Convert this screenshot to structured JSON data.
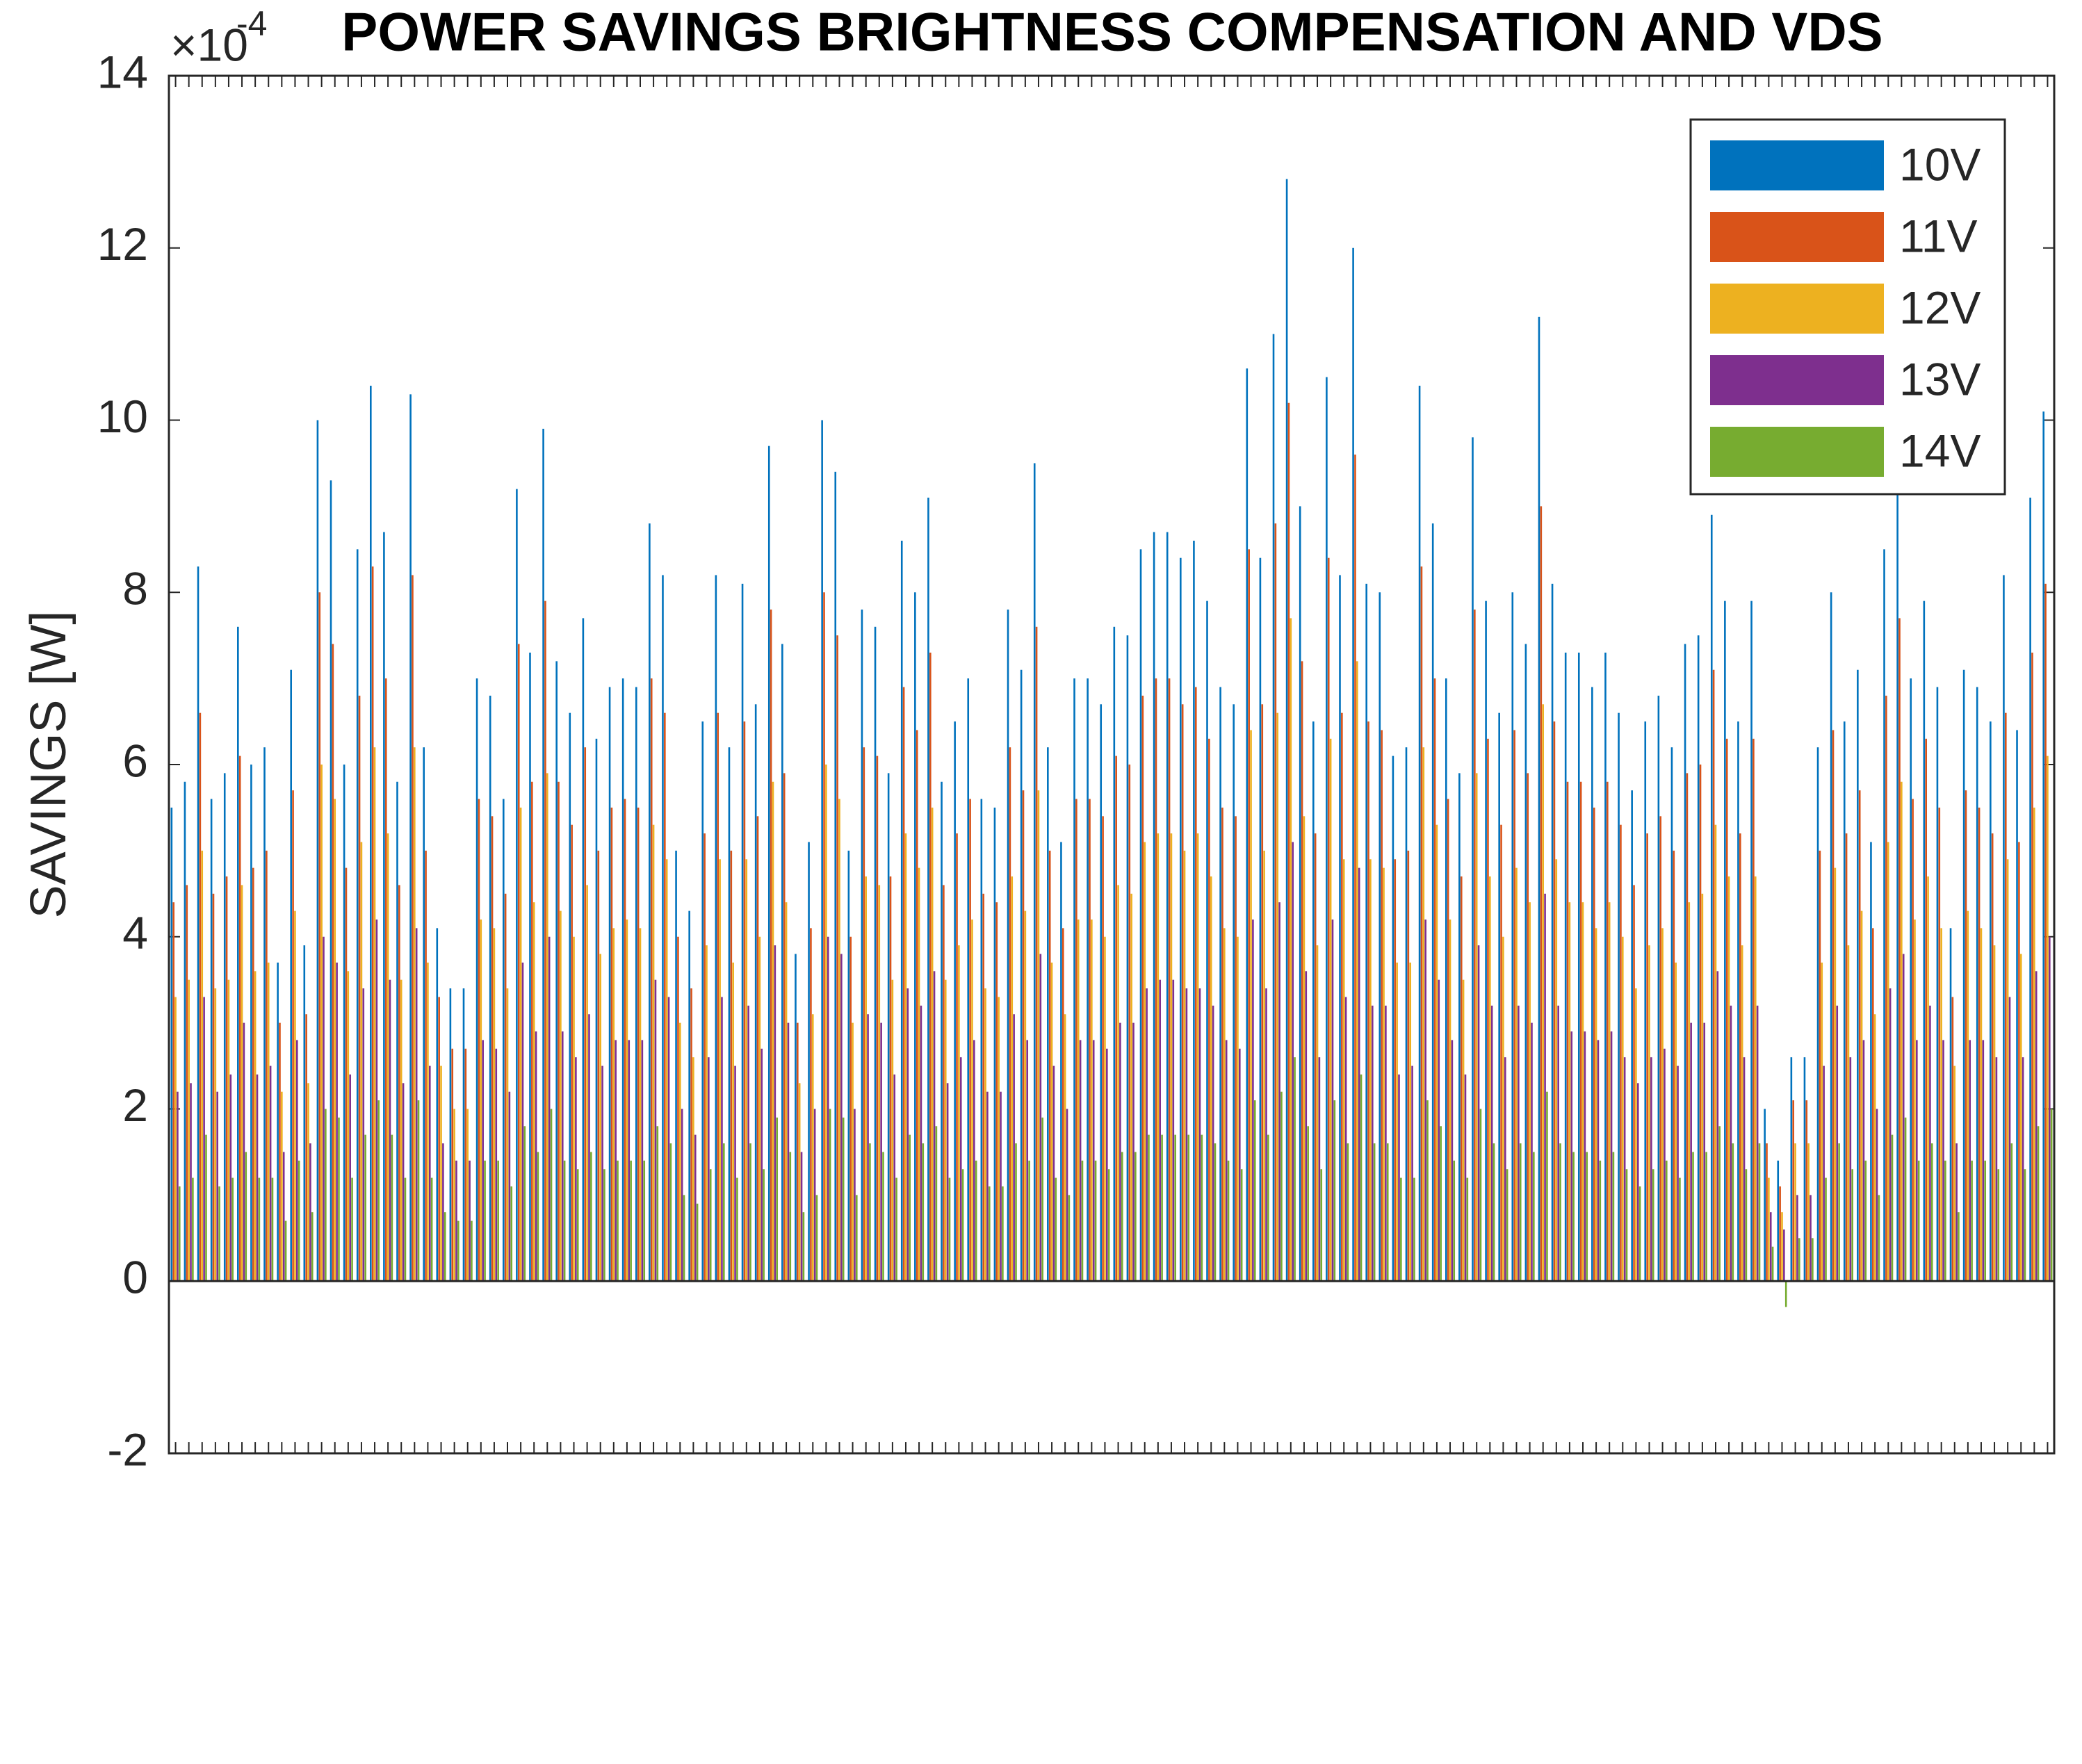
{
  "chart_data": {
    "type": "bar",
    "title": "POWER SAVINGS BRIGHTNESS COMPENSATION AND VDS",
    "ylabel": "SAVINGS  [W]",
    "y_multiplier": {
      "base": "×10",
      "exponent": "-4"
    },
    "ylim": [
      -2,
      14
    ],
    "yticks": [
      -2,
      0,
      2,
      4,
      6,
      8,
      10,
      12,
      14
    ],
    "grid": false,
    "legend": "northeast",
    "categories": [
      null,
      null,
      null,
      null,
      null,
      null,
      null,
      null,
      null,
      null,
      null,
      null,
      null,
      null,
      null,
      null,
      null,
      null,
      null,
      null,
      null,
      null,
      null,
      null,
      null,
      null,
      null,
      null,
      null,
      null,
      null,
      null,
      null,
      null,
      null,
      null,
      null,
      null,
      null,
      null,
      null,
      null,
      null,
      null,
      null,
      null,
      null,
      null,
      null,
      null,
      null,
      null,
      null,
      null,
      null,
      null,
      null,
      null,
      null,
      null,
      null,
      null,
      null,
      null,
      null,
      null,
      null,
      null,
      null,
      null,
      null,
      null,
      null,
      null,
      null,
      null,
      null,
      null,
      null,
      null,
      null,
      null,
      null,
      null,
      null,
      null,
      null,
      null,
      null,
      null,
      null,
      null,
      null,
      null,
      null,
      null,
      null,
      null,
      null,
      null,
      null,
      null,
      null,
      null,
      null,
      null,
      null,
      null,
      null,
      null,
      null,
      null,
      null,
      null,
      null,
      null,
      null,
      null,
      null,
      null,
      null,
      null,
      null,
      null,
      null,
      null,
      null,
      null,
      null,
      null,
      null,
      null,
      null,
      null,
      null,
      null,
      null,
      null,
      null,
      null,
      null,
      null
    ],
    "series": [
      {
        "name": "10V",
        "color": "#0072bd",
        "values": [
          5.5,
          5.8,
          8.3,
          5.6,
          5.9,
          7.6,
          6.0,
          6.2,
          3.7,
          7.1,
          3.9,
          10.0,
          9.3,
          6.0,
          8.5,
          10.4,
          8.7,
          5.8,
          10.3,
          6.2,
          4.1,
          3.4,
          3.4,
          7.0,
          6.8,
          5.6,
          9.2,
          7.3,
          9.9,
          7.2,
          6.6,
          7.7,
          6.3,
          6.9,
          7.0,
          6.9,
          8.8,
          8.2,
          5.0,
          4.3,
          6.5,
          8.2,
          6.2,
          8.1,
          6.7,
          9.7,
          7.4,
          3.8,
          5.1,
          10.0,
          9.4,
          5.0,
          7.8,
          7.6,
          5.9,
          8.6,
          8.0,
          9.1,
          5.8,
          6.5,
          7.0,
          5.6,
          5.5,
          7.8,
          7.1,
          9.5,
          6.2,
          5.1,
          7.0,
          7.0,
          6.7,
          7.6,
          7.5,
          8.5,
          8.7,
          8.7,
          8.4,
          8.6,
          7.9,
          6.9,
          6.7,
          10.6,
          8.4,
          11.0,
          12.8,
          9.0,
          6.5,
          10.5,
          8.2,
          12.0,
          8.1,
          8.0,
          6.1,
          6.2,
          10.4,
          8.8,
          7.0,
          5.9,
          9.8,
          7.9,
          6.6,
          8.0,
          7.4,
          11.2,
          8.1,
          7.3,
          7.3,
          6.9,
          7.3,
          6.6,
          5.7,
          6.5,
          6.8,
          6.2,
          7.4,
          7.5,
          8.9,
          7.9,
          6.5,
          7.9,
          2.0,
          1.4,
          2.6,
          2.6,
          6.2,
          8.0,
          6.5,
          7.1,
          5.1,
          8.5,
          9.6,
          7.0,
          7.9,
          6.9,
          4.1,
          7.1,
          6.9,
          6.5,
          8.2,
          6.4,
          9.1,
          10.1
        ]
      },
      {
        "name": "11V",
        "color": "#d95319",
        "values": [
          4.4,
          4.6,
          6.6,
          4.5,
          4.7,
          6.1,
          4.8,
          5.0,
          3.0,
          5.7,
          3.1,
          8.0,
          7.4,
          4.8,
          6.8,
          8.3,
          7.0,
          4.6,
          8.2,
          5.0,
          3.3,
          2.7,
          2.7,
          5.6,
          5.4,
          4.5,
          7.4,
          5.8,
          7.9,
          5.8,
          5.3,
          6.2,
          5.0,
          5.5,
          5.6,
          5.5,
          7.0,
          6.6,
          4.0,
          3.4,
          5.2,
          6.6,
          5.0,
          6.5,
          5.4,
          7.8,
          5.9,
          3.0,
          4.1,
          8.0,
          7.5,
          4.0,
          6.2,
          6.1,
          4.7,
          6.9,
          6.4,
          7.3,
          4.6,
          5.2,
          5.6,
          4.5,
          4.4,
          6.2,
          5.7,
          7.6,
          5.0,
          4.1,
          5.6,
          5.6,
          5.4,
          6.1,
          6.0,
          6.8,
          7.0,
          7.0,
          6.7,
          6.9,
          6.3,
          5.5,
          5.4,
          8.5,
          6.7,
          8.8,
          10.2,
          7.2,
          5.2,
          8.4,
          6.6,
          9.6,
          6.5,
          6.4,
          4.9,
          5.0,
          8.3,
          7.0,
          5.6,
          4.7,
          7.8,
          6.3,
          5.3,
          6.4,
          5.9,
          9.0,
          6.5,
          5.8,
          5.8,
          5.5,
          5.8,
          5.3,
          4.6,
          5.2,
          5.4,
          5.0,
          5.9,
          6.0,
          7.1,
          6.3,
          5.2,
          6.3,
          1.6,
          1.1,
          2.1,
          2.1,
          5.0,
          6.4,
          5.2,
          5.7,
          4.1,
          6.8,
          7.7,
          5.6,
          6.3,
          5.5,
          3.3,
          5.7,
          5.5,
          5.2,
          6.6,
          5.1,
          7.3,
          8.1
        ]
      },
      {
        "name": "12V",
        "color": "#edb120",
        "values": [
          3.3,
          3.5,
          5.0,
          3.4,
          3.5,
          4.6,
          3.6,
          3.7,
          2.2,
          4.3,
          2.3,
          6.0,
          5.6,
          3.6,
          5.1,
          6.2,
          5.2,
          3.5,
          6.2,
          3.7,
          2.5,
          2.0,
          2.0,
          4.2,
          4.1,
          3.4,
          5.5,
          4.4,
          5.9,
          4.3,
          4.0,
          4.6,
          3.8,
          4.1,
          4.2,
          4.1,
          5.3,
          4.9,
          3.0,
          2.6,
          3.9,
          4.9,
          3.7,
          4.9,
          4.0,
          5.8,
          4.4,
          2.3,
          3.1,
          6.0,
          5.6,
          3.0,
          4.7,
          4.6,
          3.5,
          5.2,
          4.8,
          5.5,
          3.5,
          3.9,
          4.2,
          3.4,
          3.3,
          4.7,
          4.3,
          5.7,
          3.7,
          3.1,
          4.2,
          4.2,
          4.0,
          4.6,
          4.5,
          5.1,
          5.2,
          5.2,
          5.0,
          5.2,
          4.7,
          4.1,
          4.0,
          6.4,
          5.0,
          6.6,
          7.7,
          5.4,
          3.9,
          6.3,
          4.9,
          7.2,
          4.9,
          4.8,
          3.7,
          3.7,
          6.2,
          5.3,
          4.2,
          3.5,
          5.9,
          4.7,
          4.0,
          4.8,
          4.4,
          6.7,
          4.9,
          4.4,
          4.4,
          4.1,
          4.4,
          4.0,
          3.4,
          3.9,
          4.1,
          3.7,
          4.4,
          4.5,
          5.3,
          4.7,
          3.9,
          4.7,
          1.2,
          0.8,
          1.6,
          1.6,
          3.7,
          4.8,
          3.9,
          4.3,
          3.1,
          5.1,
          5.8,
          4.2,
          4.7,
          4.1,
          2.5,
          4.3,
          4.1,
          3.9,
          4.9,
          3.8,
          5.5,
          6.1
        ]
      },
      {
        "name": "13V",
        "color": "#7e2f8e",
        "values": [
          2.2,
          2.3,
          3.3,
          2.2,
          2.4,
          3.0,
          2.4,
          2.5,
          1.5,
          2.8,
          1.6,
          4.0,
          3.7,
          2.4,
          3.4,
          4.2,
          3.5,
          2.3,
          4.1,
          2.5,
          1.6,
          1.4,
          1.4,
          2.8,
          2.7,
          2.2,
          3.7,
          2.9,
          4.0,
          2.9,
          2.6,
          3.1,
          2.5,
          2.8,
          2.8,
          2.8,
          3.5,
          3.3,
          2.0,
          1.7,
          2.6,
          3.3,
          2.5,
          3.2,
          2.7,
          3.9,
          3.0,
          1.5,
          2.0,
          4.0,
          3.8,
          2.0,
          3.1,
          3.0,
          2.4,
          3.4,
          3.2,
          3.6,
          2.3,
          2.6,
          2.8,
          2.2,
          2.2,
          3.1,
          2.8,
          3.8,
          2.5,
          2.0,
          2.8,
          2.8,
          2.7,
          3.0,
          3.0,
          3.4,
          3.5,
          3.5,
          3.4,
          3.4,
          3.2,
          2.8,
          2.7,
          4.2,
          3.4,
          4.4,
          5.1,
          3.6,
          2.6,
          4.2,
          3.3,
          4.8,
          3.2,
          3.2,
          2.4,
          2.5,
          4.2,
          3.5,
          2.8,
          2.4,
          3.9,
          3.2,
          2.6,
          3.2,
          3.0,
          4.5,
          3.2,
          2.9,
          2.9,
          2.8,
          2.9,
          2.6,
          2.3,
          2.6,
          2.7,
          2.5,
          3.0,
          3.0,
          3.6,
          3.2,
          2.6,
          3.2,
          0.8,
          0.6,
          1.0,
          1.0,
          2.5,
          3.2,
          2.6,
          2.8,
          2.0,
          3.4,
          3.8,
          2.8,
          3.2,
          2.8,
          1.6,
          2.8,
          2.8,
          2.6,
          3.3,
          2.6,
          3.6,
          4.0
        ]
      },
      {
        "name": "14V",
        "color": "#77ac30",
        "values": [
          1.1,
          1.2,
          1.7,
          1.1,
          1.2,
          1.5,
          1.2,
          1.2,
          0.7,
          1.4,
          0.8,
          2.0,
          1.9,
          1.2,
          1.7,
          2.1,
          1.7,
          1.2,
          2.1,
          1.2,
          0.8,
          0.7,
          0.7,
          1.4,
          1.4,
          1.1,
          1.8,
          1.5,
          2.0,
          1.4,
          1.3,
          1.5,
          1.3,
          1.4,
          1.4,
          1.4,
          1.8,
          1.6,
          1.0,
          0.9,
          1.3,
          1.6,
          1.2,
          1.6,
          1.3,
          1.9,
          1.5,
          0.8,
          1.0,
          2.0,
          1.9,
          1.0,
          1.6,
          1.5,
          1.2,
          1.7,
          1.6,
          1.8,
          1.2,
          1.3,
          1.4,
          1.1,
          1.1,
          1.6,
          1.4,
          1.9,
          1.2,
          1.0,
          1.4,
          1.4,
          1.3,
          1.5,
          1.5,
          1.7,
          1.7,
          1.7,
          1.7,
          1.7,
          1.6,
          1.4,
          1.3,
          2.1,
          1.7,
          2.2,
          2.6,
          1.8,
          1.3,
          2.1,
          1.6,
          2.4,
          1.6,
          1.6,
          1.2,
          1.2,
          2.1,
          1.8,
          1.4,
          1.2,
          2.0,
          1.6,
          1.3,
          1.6,
          1.5,
          2.2,
          1.6,
          1.5,
          1.5,
          1.4,
          1.5,
          1.3,
          1.1,
          1.3,
          1.4,
          1.2,
          1.5,
          1.5,
          1.8,
          1.6,
          1.3,
          1.6,
          0.4,
          -0.3,
          0.5,
          0.5,
          1.2,
          1.6,
          1.3,
          1.4,
          1.0,
          1.7,
          1.9,
          1.4,
          1.6,
          1.4,
          0.8,
          1.4,
          1.4,
          1.3,
          1.6,
          1.3,
          1.8,
          2.0
        ]
      }
    ]
  }
}
